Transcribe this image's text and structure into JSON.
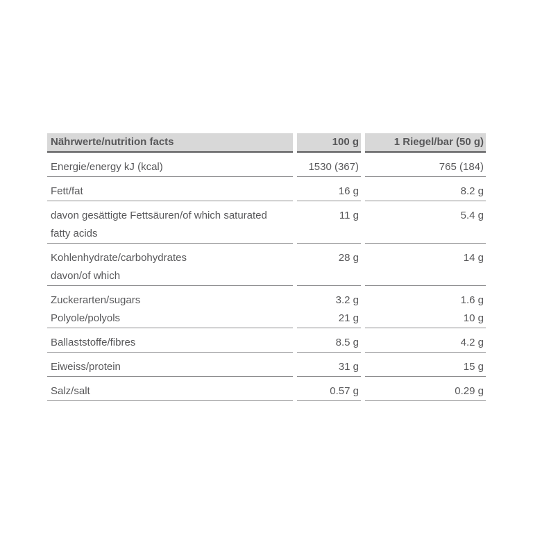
{
  "table": {
    "colors": {
      "header_bg": "#d8d8d8",
      "text": "#58585a",
      "row_border": "#8d8d8f",
      "header_border": "#5a5a5c"
    },
    "header": {
      "col_label": "Nährwerte/nutrition facts",
      "col_100g": "100 g",
      "col_bar": "1 Riegel/bar (50 g)"
    },
    "rows": [
      {
        "lines": [
          {
            "label": "Energie/energy kJ (kcal)",
            "v100": "1530 (367)",
            "vbar": "765 (184)"
          }
        ]
      },
      {
        "lines": [
          {
            "label": "Fett/fat",
            "v100": "16 g",
            "vbar": "8.2 g"
          }
        ]
      },
      {
        "lines": [
          {
            "label": "davon gesättigte Fettsäuren/of which saturated",
            "v100": "11 g",
            "vbar": "5.4 g"
          },
          {
            "label": "fatty acids",
            "v100": "",
            "vbar": ""
          }
        ]
      },
      {
        "lines": [
          {
            "label": "Kohlenhydrate/carbohydrates",
            "v100": "28 g",
            "vbar": "14 g"
          },
          {
            "label": "davon/of which",
            "v100": "",
            "vbar": ""
          }
        ]
      },
      {
        "lines": [
          {
            "label": "Zuckerarten/sugars",
            "v100": "3.2 g",
            "vbar": "1.6 g"
          },
          {
            "label": "Polyole/polyols",
            "v100": "21 g",
            "vbar": "10 g"
          }
        ]
      },
      {
        "lines": [
          {
            "label": "Ballaststoffe/fibres",
            "v100": "8.5 g",
            "vbar": "4.2 g"
          }
        ]
      },
      {
        "lines": [
          {
            "label": "Eiweiss/protein",
            "v100": "31 g",
            "vbar": "15 g"
          }
        ]
      },
      {
        "lines": [
          {
            "label": "Salz/salt",
            "v100": "0.57 g",
            "vbar": "0.29 g"
          }
        ]
      }
    ]
  }
}
